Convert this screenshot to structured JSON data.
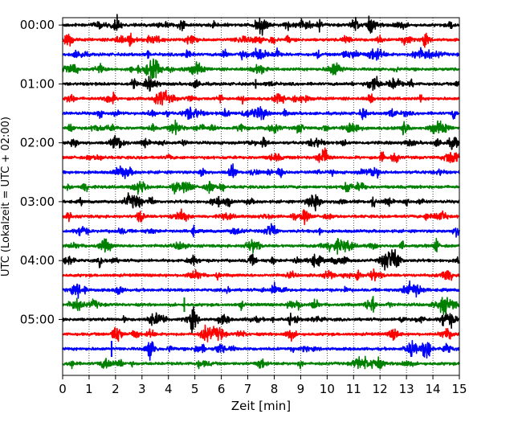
{
  "chart_data": {
    "type": "line",
    "title": "",
    "xlabel": "Zeit  [min]",
    "ylabel": "UTC (Lokalzeit = UTC + 02:00)",
    "xlim": [
      0,
      15
    ],
    "x_ticks": [
      0,
      1,
      2,
      3,
      4,
      5,
      6,
      7,
      8,
      9,
      10,
      11,
      12,
      13,
      14,
      15
    ],
    "y_tick_labels": [
      "00:00",
      "01:00",
      "02:00",
      "03:00",
      "04:00",
      "05:00"
    ],
    "y_tick_traces": [
      0,
      4,
      8,
      12,
      16,
      20
    ],
    "trace_interval_min": 15,
    "trace_count": 24,
    "trace_colors": [
      "#000000",
      "#ff0000",
      "#0000ff",
      "#008000"
    ],
    "vertical_grid": "dotted",
    "legend": "none"
  }
}
